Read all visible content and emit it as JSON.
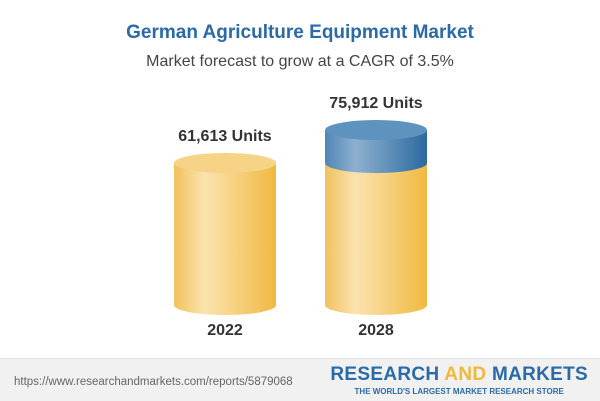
{
  "chart_data": {
    "type": "bar",
    "title": "German Agriculture Equipment Market",
    "subtitle": "Market forecast to grow at a CAGR of 3.5%",
    "categories": [
      "2022",
      "2028"
    ],
    "values": [
      61613,
      75912
    ],
    "data_labels": [
      "61,613 Units",
      "75,912 Units"
    ],
    "style": "3d-cylinder",
    "colors": {
      "base": "#f2c25a",
      "growth": "#4f86b5"
    }
  },
  "footer": {
    "url": "https://www.researchandmarkets.com/reports/5879068",
    "brand_part1": "RESEARCH ",
    "brand_and": "AND",
    "brand_part2": " MARKETS",
    "tagline": "THE WORLD'S LARGEST MARKET RESEARCH STORE"
  }
}
